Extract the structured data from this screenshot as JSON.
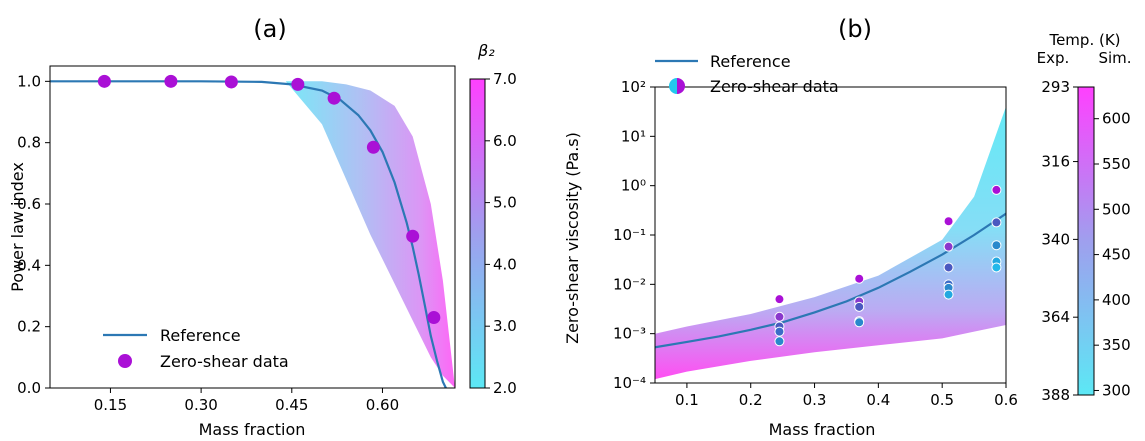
{
  "chart_data": [
    {
      "type": "scatter",
      "title": "(a)",
      "xlabel": "Mass fraction",
      "ylabel": "Power law index",
      "xlim": [
        0.05,
        0.72
      ],
      "ylim": [
        0.0,
        1.05
      ],
      "xticks": [
        "0.15",
        "0.30",
        "0.45",
        "0.60"
      ],
      "xtick_values": [
        0.15,
        0.3,
        0.45,
        0.6
      ],
      "yticks": [
        "0.0",
        "0.2",
        "0.4",
        "0.6",
        "0.8",
        "1.0"
      ],
      "ytick_values": [
        0.0,
        0.2,
        0.4,
        0.6,
        0.8,
        1.0
      ],
      "grid": false,
      "legend_position": "lower-left",
      "series": [
        {
          "name": "Reference",
          "kind": "line",
          "color": "#2c78b4",
          "x": [
            0.05,
            0.1,
            0.2,
            0.3,
            0.4,
            0.45,
            0.5,
            0.53,
            0.56,
            0.58,
            0.6,
            0.62,
            0.64,
            0.65,
            0.66,
            0.67,
            0.68,
            0.69,
            0.7,
            0.705
          ],
          "y": [
            1.0,
            1.0,
            1.0,
            1.0,
            0.998,
            0.99,
            0.97,
            0.94,
            0.89,
            0.84,
            0.77,
            0.67,
            0.54,
            0.46,
            0.37,
            0.27,
            0.17,
            0.09,
            0.02,
            0.0
          ]
        },
        {
          "name": "Zero-shear data",
          "kind": "points",
          "color": "#aa10d6",
          "x": [
            0.14,
            0.25,
            0.35,
            0.46,
            0.52,
            0.585,
            0.65,
            0.685
          ],
          "y": [
            1.0,
            1.0,
            0.998,
            0.99,
            0.945,
            0.785,
            0.495,
            0.23
          ]
        }
      ],
      "shaded_band": {
        "x": [
          0.44,
          0.5,
          0.54,
          0.58,
          0.62,
          0.65,
          0.68,
          0.7,
          0.72
        ],
        "lower": [
          1.0,
          0.86,
          0.68,
          0.5,
          0.34,
          0.22,
          0.1,
          0.04,
          0.0
        ],
        "upper": [
          1.0,
          1.0,
          0.99,
          0.97,
          0.92,
          0.82,
          0.6,
          0.35,
          0.0
        ]
      },
      "colorbar": {
        "label": "β₂",
        "range": [
          2.0,
          7.0
        ],
        "ticks": [
          "2.0",
          "3.0",
          "4.0",
          "5.0",
          "6.0",
          "7.0"
        ],
        "tick_values": [
          2.0,
          3.0,
          4.0,
          5.0,
          6.0,
          7.0
        ],
        "color_low": "#5ce8f5",
        "color_high": "#ff40ff"
      }
    },
    {
      "type": "scatter",
      "title": "(b)",
      "xlabel": "Mass fraction",
      "ylabel": "Zero-shear viscosity (Pa.s)",
      "y_scale": "log",
      "xlim": [
        0.05,
        0.6
      ],
      "ylim": [
        0.0001,
        100
      ],
      "xticks": [
        "0.1",
        "0.2",
        "0.3",
        "0.4",
        "0.5",
        "0.6"
      ],
      "xtick_values": [
        0.1,
        0.2,
        0.3,
        0.4,
        0.5,
        0.6
      ],
      "yticks": [
        "10⁻⁴",
        "10⁻³",
        "10⁻²",
        "10⁻¹",
        "10⁰",
        "10¹",
        "10²"
      ],
      "ytick_values": [
        0.0001,
        0.001,
        0.01,
        0.1,
        1,
        10,
        100
      ],
      "grid": false,
      "legend_position": "upper-left",
      "series": [
        {
          "name": "Reference",
          "kind": "line",
          "color": "#2c78b4",
          "x": [
            0.05,
            0.1,
            0.15,
            0.2,
            0.25,
            0.3,
            0.35,
            0.4,
            0.45,
            0.5,
            0.55,
            0.6
          ],
          "y": [
            0.00053,
            0.00068,
            0.00088,
            0.0012,
            0.0017,
            0.0027,
            0.0045,
            0.0085,
            0.018,
            0.04,
            0.1,
            0.27
          ]
        },
        {
          "name": "Zero-shear data",
          "kind": "points",
          "x": [
            0.245,
            0.245,
            0.245,
            0.245,
            0.245,
            0.37,
            0.37,
            0.37,
            0.37,
            0.37,
            0.51,
            0.51,
            0.51,
            0.51,
            0.51,
            0.51,
            0.585,
            0.585,
            0.585,
            0.585,
            0.585
          ],
          "y": [
            0.005,
            0.0022,
            0.0014,
            0.0011,
            0.0007,
            0.013,
            0.0045,
            0.0035,
            0.0018,
            0.0017,
            0.19,
            0.058,
            0.022,
            0.01,
            0.0085,
            0.0062,
            0.82,
            0.18,
            0.062,
            0.029,
            0.022
          ],
          "colors": [
            "#aa10d6",
            "#8a38cc",
            "#4a58c0",
            "#3c6cc8",
            "#2a88cc",
            "#aa10d6",
            "#8a38cc",
            "#4a58c0",
            "#3c6cc8",
            "#2a88cc",
            "#aa10d6",
            "#8a38cc",
            "#4a58c0",
            "#3c6cc8",
            "#2a88cc",
            "#22a8e0",
            "#aa10d6",
            "#4a58c0",
            "#2a88cc",
            "#22a8e0",
            "#22b8ea"
          ]
        }
      ],
      "shaded_band": {
        "x": [
          0.05,
          0.1,
          0.2,
          0.3,
          0.4,
          0.5,
          0.55,
          0.6
        ],
        "lower": [
          0.00012,
          0.00017,
          0.00028,
          0.00042,
          0.00058,
          0.0008,
          0.0011,
          0.0015
        ],
        "upper": [
          0.001,
          0.0014,
          0.0025,
          0.0055,
          0.015,
          0.08,
          0.6,
          40
        ]
      },
      "colorbar": {
        "header_title": "Temp. (K)",
        "header_left": "Exp.",
        "header_right": "Sim.",
        "left_ticks": [
          "293",
          "316",
          "340",
          "364",
          "388"
        ],
        "left_tick_values": [
          293,
          316,
          340,
          364,
          388
        ],
        "left_range": [
          293,
          388
        ],
        "right_ticks": [
          "300",
          "350",
          "400",
          "450",
          "500",
          "550",
          "600"
        ],
        "right_tick_values": [
          300,
          350,
          400,
          450,
          500,
          550,
          600
        ],
        "right_range": [
          295,
          635
        ],
        "color_low": "#5ce8f5",
        "color_high": "#ff40ff"
      }
    }
  ]
}
